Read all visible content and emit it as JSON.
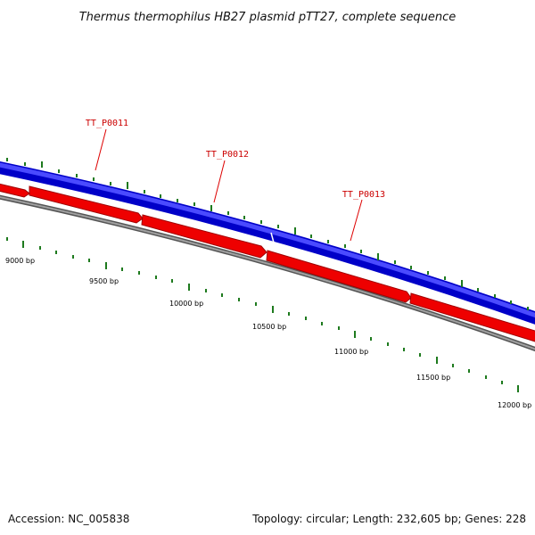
{
  "title": "Thermus thermophilus HB27 plasmid pTT27, complete sequence",
  "footer": {
    "accession": "Accession: NC_005838",
    "summary": "Topology: circular; Length: 232,605 bp; Genes: 228"
  },
  "colors": {
    "forward_strand": "#1a1aff",
    "reverse_strand": "#ff0000",
    "backbone": "#808080",
    "ticks": "#1e7a1e",
    "label_text": "#cc0000"
  },
  "genes": [
    {
      "name": "TT_P0011",
      "strand": "forward"
    },
    {
      "name": "TT_P0012",
      "strand": "forward"
    },
    {
      "name": "TT_P0013",
      "strand": "forward"
    }
  ],
  "position_labels": [
    "9000 bp",
    "9500 bp",
    "10000 bp",
    "10500 bp",
    "11000 bp",
    "11500 bp",
    "12000 bp"
  ]
}
